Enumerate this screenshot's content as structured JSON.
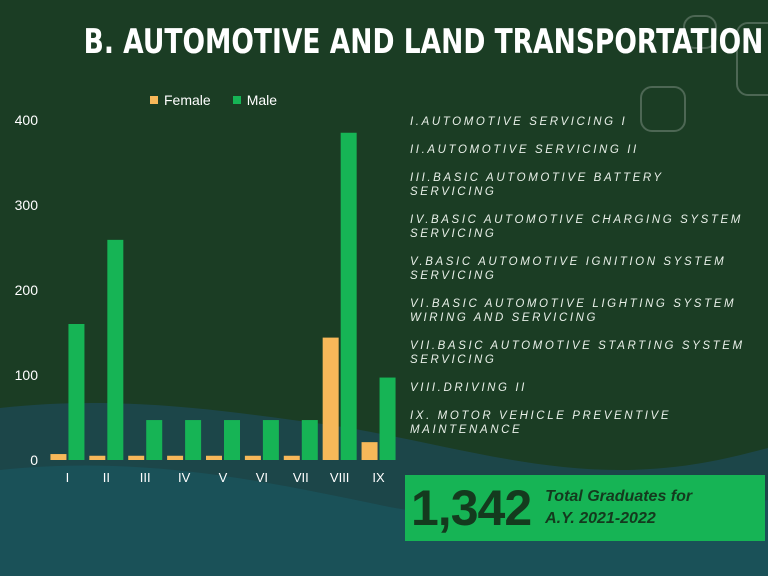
{
  "title": "B. AUTOMOTIVE AND LAND TRANSPORTATION",
  "colors": {
    "female": "#f7b859",
    "male": "#16b455",
    "background": "#1b3d24"
  },
  "course_list": [
    "I.AUTOMOTIVE SERVICING I",
    "II.AUTOMOTIVE SERVICING II",
    "III.BASIC AUTOMOTIVE BATTERY SERVICING",
    "IV.BASIC AUTOMOTIVE CHARGING SYSTEM SERVICING",
    "V.BASIC AUTOMOTIVE IGNITION SYSTEM SERVICING",
    "VI.BASIC AUTOMOTIVE LIGHTING SYSTEM WIRING AND SERVICING",
    "VII.BASIC AUTOMOTIVE STARTING SYSTEM SERVICING",
    "VIII.DRIVING II",
    "IX. MOTOR VEHICLE PREVENTIVE MAINTENANCE"
  ],
  "total": {
    "number": "1,342",
    "label": "Total Graduates for A.Y. 2021-2022"
  },
  "chart_data": {
    "type": "bar",
    "categories": [
      "I",
      "II",
      "III",
      "IV",
      "V",
      "VI",
      "VII",
      "VIII",
      "IX"
    ],
    "series": [
      {
        "name": "Female",
        "values": [
          7,
          5,
          5,
          5,
          5,
          5,
          5,
          144,
          21
        ]
      },
      {
        "name": "Male",
        "values": [
          160,
          259,
          47,
          47,
          47,
          47,
          47,
          385,
          97
        ]
      }
    ],
    "ylim": [
      0,
      400
    ],
    "yticks": [
      0,
      100,
      200,
      300,
      400
    ],
    "grid": false,
    "legend": "top"
  }
}
